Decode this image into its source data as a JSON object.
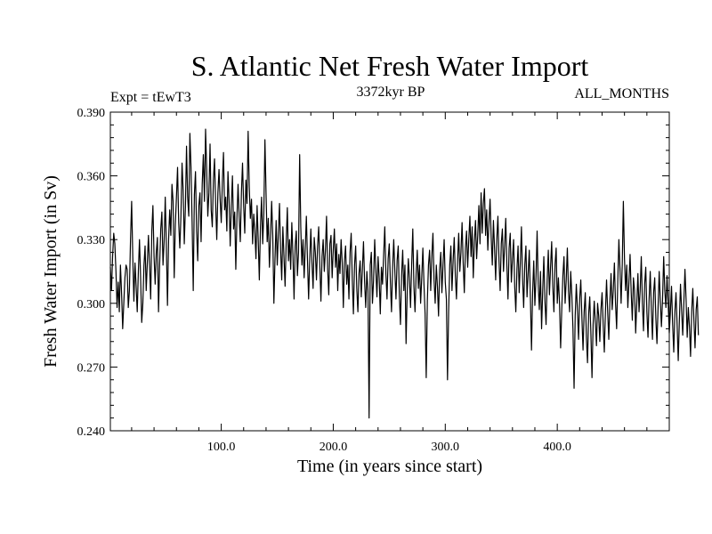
{
  "chart_data": {
    "type": "line",
    "title": "S. Atlantic Net Fresh Water Import",
    "subtitle_left": "Expt = tEwT3",
    "subtitle_center": "3372kyr BP",
    "subtitle_right": "ALL_MONTHS",
    "xlabel": "Time (in years since start)",
    "ylabel": "Fresh Water Import (in Sv)",
    "xlim": [
      1,
      500
    ],
    "ylim": [
      0.24,
      0.39
    ],
    "x_ticks": [
      {
        "value": 100,
        "label": "100.0"
      },
      {
        "value": 200,
        "label": "200.0"
      },
      {
        "value": 300,
        "label": "300.0"
      },
      {
        "value": 400,
        "label": "400.0"
      }
    ],
    "y_ticks": [
      {
        "value": 0.24,
        "label": "0.240"
      },
      {
        "value": 0.27,
        "label": "0.270"
      },
      {
        "value": 0.3,
        "label": "0.300"
      },
      {
        "value": 0.33,
        "label": "0.330"
      },
      {
        "value": 0.36,
        "label": "0.360"
      },
      {
        "value": 0.39,
        "label": "0.390"
      }
    ],
    "series": [
      {
        "name": "Fresh Water Import",
        "color": "#000000",
        "start_year": 1,
        "step": 1,
        "values": [
          0.317,
          0.306,
          0.322,
          0.333,
          0.328,
          0.315,
          0.298,
          0.31,
          0.296,
          0.318,
          0.305,
          0.288,
          0.3,
          0.312,
          0.318,
          0.316,
          0.298,
          0.306,
          0.33,
          0.348,
          0.322,
          0.301,
          0.319,
          0.308,
          0.296,
          0.315,
          0.33,
          0.312,
          0.291,
          0.3,
          0.318,
          0.327,
          0.306,
          0.319,
          0.332,
          0.318,
          0.302,
          0.334,
          0.346,
          0.322,
          0.309,
          0.324,
          0.331,
          0.296,
          0.318,
          0.335,
          0.343,
          0.318,
          0.329,
          0.35,
          0.327,
          0.299,
          0.33,
          0.344,
          0.332,
          0.356,
          0.348,
          0.312,
          0.337,
          0.35,
          0.364,
          0.338,
          0.326,
          0.341,
          0.366,
          0.353,
          0.328,
          0.345,
          0.374,
          0.35,
          0.341,
          0.38,
          0.364,
          0.338,
          0.306,
          0.351,
          0.362,
          0.334,
          0.32,
          0.346,
          0.352,
          0.329,
          0.356,
          0.37,
          0.348,
          0.382,
          0.363,
          0.341,
          0.352,
          0.375,
          0.344,
          0.336,
          0.358,
          0.368,
          0.347,
          0.33,
          0.352,
          0.363,
          0.349,
          0.338,
          0.357,
          0.371,
          0.344,
          0.35,
          0.334,
          0.362,
          0.348,
          0.327,
          0.346,
          0.36,
          0.335,
          0.343,
          0.316,
          0.34,
          0.356,
          0.341,
          0.329,
          0.352,
          0.366,
          0.346,
          0.333,
          0.358,
          0.347,
          0.381,
          0.355,
          0.34,
          0.349,
          0.328,
          0.342,
          0.334,
          0.321,
          0.346,
          0.33,
          0.311,
          0.336,
          0.35,
          0.328,
          0.342,
          0.377,
          0.352,
          0.329,
          0.34,
          0.317,
          0.331,
          0.348,
          0.332,
          0.3,
          0.321,
          0.339,
          0.318,
          0.333,
          0.347,
          0.325,
          0.311,
          0.336,
          0.322,
          0.308,
          0.329,
          0.345,
          0.32,
          0.33,
          0.316,
          0.338,
          0.323,
          0.302,
          0.327,
          0.334,
          0.313,
          0.324,
          0.37,
          0.336,
          0.318,
          0.33,
          0.312,
          0.326,
          0.341,
          0.32,
          0.302,
          0.321,
          0.335,
          0.319,
          0.307,
          0.331,
          0.324,
          0.311,
          0.327,
          0.336,
          0.318,
          0.301,
          0.322,
          0.33,
          0.315,
          0.325,
          0.341,
          0.316,
          0.304,
          0.328,
          0.332,
          0.312,
          0.325,
          0.335,
          0.317,
          0.328,
          0.306,
          0.323,
          0.314,
          0.33,
          0.319,
          0.298,
          0.32,
          0.327,
          0.309,
          0.318,
          0.302,
          0.324,
          0.333,
          0.311,
          0.295,
          0.318,
          0.327,
          0.307,
          0.296,
          0.314,
          0.32,
          0.303,
          0.316,
          0.329,
          0.31,
          0.298,
          0.315,
          0.306,
          0.246,
          0.318,
          0.324,
          0.3,
          0.311,
          0.33,
          0.316,
          0.303,
          0.322,
          0.312,
          0.295,
          0.317,
          0.309,
          0.323,
          0.336,
          0.314,
          0.302,
          0.321,
          0.328,
          0.31,
          0.296,
          0.317,
          0.33,
          0.315,
          0.302,
          0.32,
          0.327,
          0.304,
          0.29,
          0.313,
          0.325,
          0.306,
          0.318,
          0.281,
          0.305,
          0.321,
          0.312,
          0.298,
          0.318,
          0.335,
          0.308,
          0.296,
          0.314,
          0.325,
          0.307,
          0.318,
          0.3,
          0.312,
          0.326,
          0.309,
          0.295,
          0.265,
          0.301,
          0.318,
          0.325,
          0.306,
          0.322,
          0.333,
          0.311,
          0.3,
          0.318,
          0.308,
          0.294,
          0.316,
          0.324,
          0.305,
          0.318,
          0.33,
          0.31,
          0.302,
          0.264,
          0.296,
          0.318,
          0.327,
          0.306,
          0.32,
          0.331,
          0.313,
          0.302,
          0.32,
          0.333,
          0.315,
          0.324,
          0.338,
          0.319,
          0.305,
          0.326,
          0.334,
          0.317,
          0.33,
          0.341,
          0.322,
          0.336,
          0.312,
          0.329,
          0.339,
          0.321,
          0.332,
          0.346,
          0.328,
          0.352,
          0.333,
          0.347,
          0.354,
          0.332,
          0.344,
          0.325,
          0.338,
          0.349,
          0.331,
          0.318,
          0.339,
          0.326,
          0.311,
          0.33,
          0.341,
          0.32,
          0.306,
          0.328,
          0.335,
          0.315,
          0.327,
          0.34,
          0.318,
          0.302,
          0.326,
          0.333,
          0.31,
          0.321,
          0.33,
          0.308,
          0.296,
          0.316,
          0.327,
          0.305,
          0.319,
          0.336,
          0.312,
          0.298,
          0.318,
          0.327,
          0.303,
          0.314,
          0.325,
          0.303,
          0.278,
          0.305,
          0.32,
          0.299,
          0.312,
          0.334,
          0.309,
          0.297,
          0.315,
          0.288,
          0.306,
          0.322,
          0.301,
          0.29,
          0.311,
          0.325,
          0.304,
          0.317,
          0.329,
          0.308,
          0.296,
          0.318,
          0.326,
          0.3,
          0.312,
          0.3,
          0.279,
          0.297,
          0.313,
          0.322,
          0.3,
          0.311,
          0.326,
          0.306,
          0.296,
          0.315,
          0.304,
          0.288,
          0.26,
          0.294,
          0.309,
          0.297,
          0.283,
          0.302,
          0.311,
          0.293,
          0.278,
          0.296,
          0.305,
          0.284,
          0.272,
          0.295,
          0.303,
          0.286,
          0.265,
          0.29,
          0.301,
          0.291,
          0.28,
          0.3,
          0.294,
          0.282,
          0.297,
          0.305,
          0.29,
          0.277,
          0.296,
          0.311,
          0.296,
          0.283,
          0.301,
          0.314,
          0.297,
          0.306,
          0.319,
          0.3,
          0.288,
          0.31,
          0.33,
          0.316,
          0.3,
          0.318,
          0.348,
          0.321,
          0.306,
          0.318,
          0.298,
          0.31,
          0.323,
          0.305,
          0.292,
          0.312,
          0.306,
          0.286,
          0.3,
          0.314,
          0.296,
          0.306,
          0.322,
          0.3,
          0.287,
          0.309,
          0.317,
          0.296,
          0.284,
          0.302,
          0.315,
          0.297,
          0.283,
          0.305,
          0.312,
          0.293,
          0.281,
          0.298,
          0.315,
          0.301,
          0.289,
          0.302,
          0.322,
          0.306,
          0.298,
          0.313,
          0.3,
          0.286,
          0.296,
          0.308,
          0.29,
          0.277,
          0.296,
          0.305,
          0.29,
          0.273,
          0.292,
          0.309,
          0.297,
          0.285,
          0.3,
          0.316,
          0.302,
          0.284,
          0.298,
          0.289,
          0.275,
          0.296,
          0.307,
          0.292,
          0.279,
          0.297,
          0.303,
          0.285
        ]
      }
    ]
  }
}
